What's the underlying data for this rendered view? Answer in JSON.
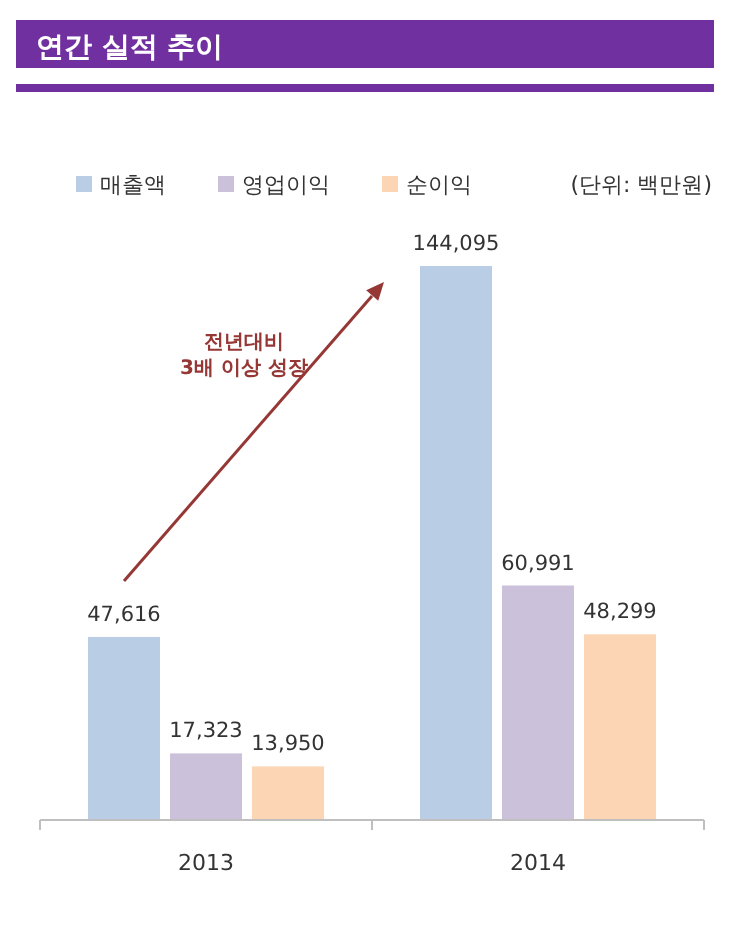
{
  "chart_data": {
    "type": "bar",
    "title": "연간 실적 추이",
    "categories": [
      "2013",
      "2014"
    ],
    "series": [
      {
        "name": "매출액",
        "color": "#b9cde5",
        "values": [
          47616,
          144095
        ],
        "value_labels": [
          "47,616",
          "144,095"
        ]
      },
      {
        "name": "영업이익",
        "color": "#ccc1da",
        "values": [
          17323,
          60991
        ],
        "value_labels": [
          "17,323",
          "60,991"
        ]
      },
      {
        "name": "순이익",
        "color": "#fcd5b5",
        "values": [
          13950,
          48299
        ],
        "value_labels": [
          "13,950",
          "48,299"
        ]
      }
    ],
    "legend": "top",
    "annotations": [
      "(단위: 백만원)",
      "전년대비\n3배 이상 성장"
    ]
  }
}
